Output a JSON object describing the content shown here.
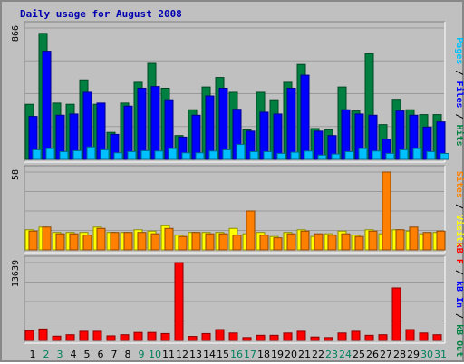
{
  "chart_data": {
    "type": "bar",
    "title": "Daily usage for August 2008",
    "days": [
      "1",
      "2",
      "3",
      "4",
      "5",
      "6",
      "7",
      "8",
      "9",
      "10",
      "11",
      "12",
      "13",
      "14",
      "15",
      "16",
      "17",
      "18",
      "19",
      "20",
      "21",
      "22",
      "23",
      "24",
      "25",
      "26",
      "27",
      "28",
      "29",
      "30",
      "31"
    ],
    "weekend_days": [
      "2",
      "3",
      "9",
      "10",
      "16",
      "17",
      "23",
      "24",
      "30",
      "31"
    ],
    "colors": {
      "hits": "#008040",
      "files": "#0000ff",
      "pages": "#00c0ff",
      "visits": "#ffff00",
      "sites": "#ff8000",
      "kb": "#ff0000",
      "weekday_label": "#000000",
      "weekend_label": "#00805c",
      "title": "#0000b0",
      "panel": "#c0c0c0"
    },
    "panels": [
      {
        "id": "top",
        "ymax": 866,
        "ymax_label": "866",
        "legend": [
          {
            "text": "Pages",
            "color": "#00c0ff"
          },
          {
            "text": " / ",
            "color": "#000000"
          },
          {
            "text": "Files",
            "color": "#0000ff"
          },
          {
            "text": " / ",
            "color": "#000000"
          },
          {
            "text": "Hits",
            "color": "#008040"
          }
        ],
        "series": [
          {
            "name": "Hits",
            "color": "#008040",
            "offset": 0,
            "values": [
              363,
              831,
              371,
              363,
              524,
              363,
              178,
              371,
              508,
              633,
              469,
              157,
              327,
              477,
              540,
              442,
              195,
              442,
              393,
              508,
              626,
              203,
              195,
              477,
              319,
              697,
              229,
              396,
              327,
              295,
              295
            ]
          },
          {
            "name": "Files",
            "color": "#0000ff",
            "offset": 4,
            "values": [
              283,
              713,
              291,
              299,
              442,
              371,
              165,
              351,
              469,
              480,
              393,
              147,
              291,
              418,
              469,
              330,
              186,
              311,
              299,
              469,
              555,
              186,
              157,
              327,
              299,
              291,
              133,
              319,
              291,
              213,
              247
            ]
          },
          {
            "name": "Pages",
            "color": "#00c0ff",
            "offset": 8,
            "values": [
              63,
              71,
              51,
              57,
              82,
              63,
              43,
              51,
              57,
              55,
              71,
              43,
              43,
              55,
              63,
              98,
              51,
              51,
              39,
              47,
              55,
              28,
              35,
              51,
              71,
              55,
              39,
              63,
              71,
              51,
              39
            ]
          }
        ]
      },
      {
        "id": "mid",
        "ymax": 58,
        "ymax_label": "58",
        "legend": [
          {
            "text": "Sites",
            "color": "#ff8000"
          },
          {
            "text": " / ",
            "color": "#000000"
          },
          {
            "text": "Visits",
            "color": "#ffff00"
          }
        ],
        "series": [
          {
            "name": "Visits",
            "color": "#ffff00",
            "offset": 0,
            "values": [
              15,
              17,
              13,
              13,
              13,
              17,
              13,
              13,
              15,
              14,
              18,
              11,
              13,
              13,
              13,
              16,
              12,
              13,
              10,
              13,
              15,
              10,
              12,
              14,
              11,
              15,
              12,
              15,
              14,
              12,
              13
            ]
          },
          {
            "name": "Sites",
            "color": "#ff8000",
            "offset": 4,
            "values": [
              14,
              17,
              12,
              12,
              11,
              16,
              13,
              13,
              13,
              12,
              16,
              10,
              13,
              12,
              12,
              11,
              29,
              11,
              9,
              12,
              14,
              12,
              11,
              12,
              10,
              14,
              58,
              15,
              17,
              13,
              14
            ]
          }
        ]
      },
      {
        "id": "bot",
        "ymax": 13639,
        "ymax_label": "13639",
        "legend": [
          {
            "text": "kB F",
            "color": "#ff0000"
          },
          {
            "text": " / ",
            "color": "#000000"
          },
          {
            "text": "kB In",
            "color": "#0000ff"
          },
          {
            "text": " / ",
            "color": "#000000"
          },
          {
            "text": "kB Out",
            "color": "#008040"
          }
        ],
        "series": [
          {
            "name": "kB F",
            "color": "#ff0000",
            "offset": 0,
            "values": [
              1720,
              2000,
              750,
              1000,
              1600,
              1600,
              800,
              1000,
              1400,
              1400,
              1200,
              13639,
              700,
              1200,
              1900,
              1300,
              500,
              900,
              900,
              1300,
              1600,
              600,
              500,
              1300,
              1600,
              900,
              1000,
              9200,
              1900,
              1300,
              1000
            ]
          }
        ]
      }
    ]
  }
}
